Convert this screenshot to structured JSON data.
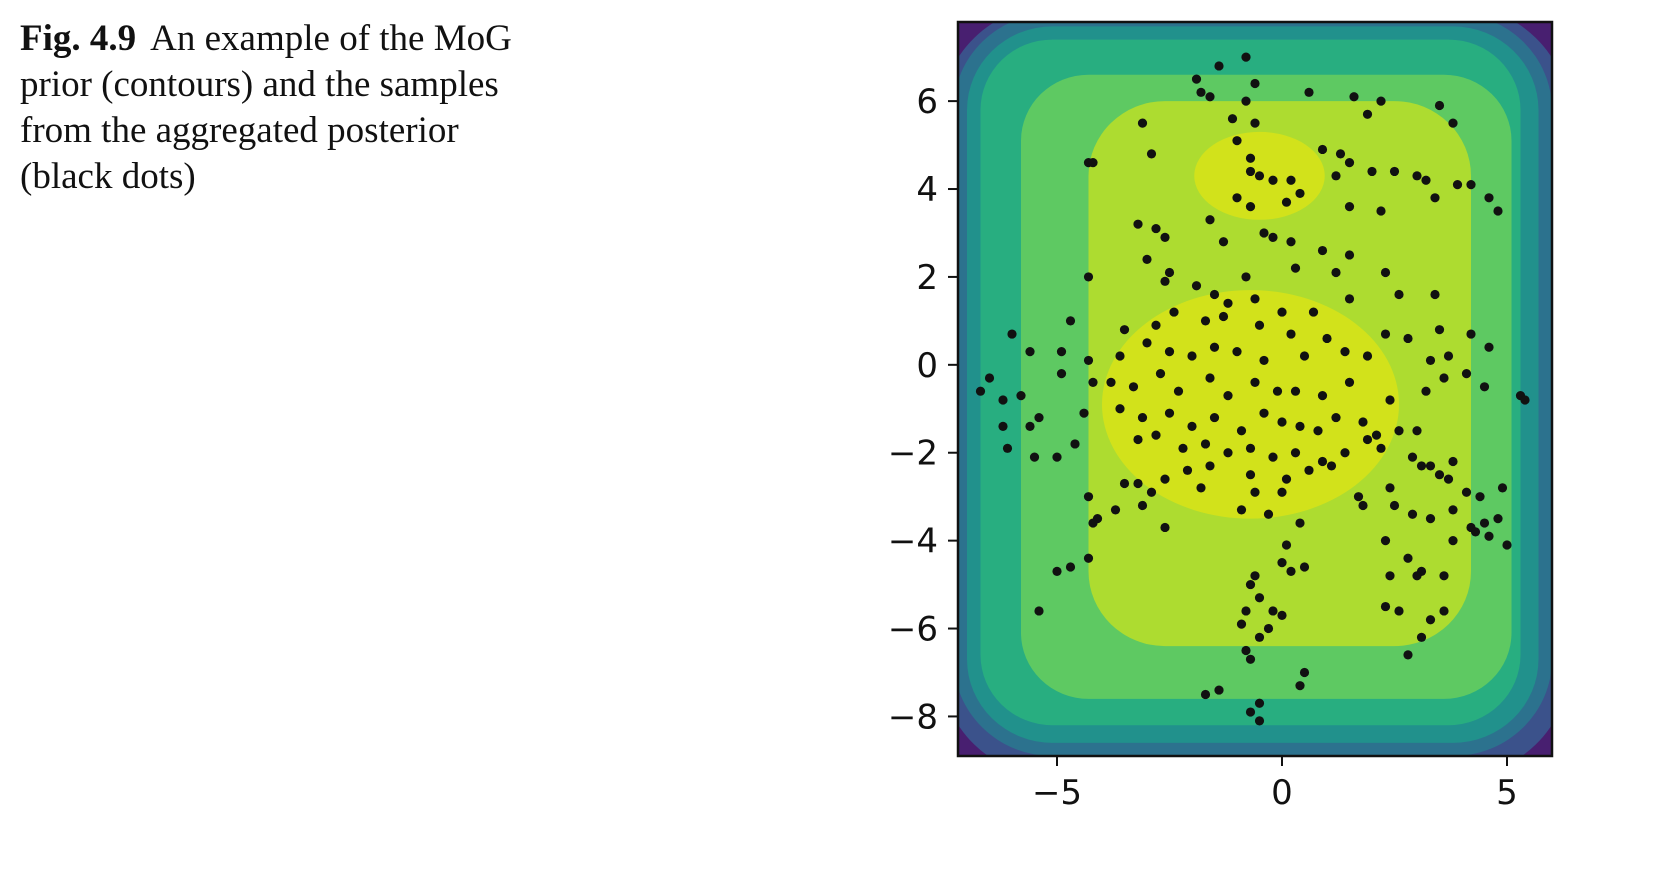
{
  "caption": {
    "label": "Fig. 4.9",
    "text": "An example of the MoG prior (contours) and the samples from the aggregated posterior (black dots)"
  },
  "chart_data": {
    "type": "scatter",
    "title": "",
    "xlabel": "",
    "ylabel": "",
    "xlim": [
      -7.2,
      6.0
    ],
    "ylim": [
      -8.9,
      7.8
    ],
    "xticks": [
      -5,
      0,
      5
    ],
    "yticks": [
      -8,
      -6,
      -4,
      -2,
      0,
      2,
      4,
      6
    ],
    "xtick_labels": [
      "−5",
      "0",
      "5"
    ],
    "ytick_labels": [
      "−8",
      "−6",
      "−4",
      "−2",
      "0",
      "2",
      "4",
      "6"
    ],
    "grid": false,
    "legend": "none",
    "background": "filled contours (viridis colormap)",
    "contour_colors": [
      "#481f70",
      "#3b528b",
      "#2c728e",
      "#21918c",
      "#28ae80",
      "#5ec962",
      "#addc30",
      "#d2e21b"
    ],
    "point_color": "#111111",
    "series": [
      {
        "points": [
          [
            -0.8,
            7.0
          ],
          [
            -1.4,
            6.8
          ],
          [
            -1.9,
            6.5
          ],
          [
            -1.8,
            6.2
          ],
          [
            -1.6,
            6.1
          ],
          [
            -0.8,
            6.0
          ],
          [
            -0.6,
            6.4
          ],
          [
            0.6,
            6.2
          ],
          [
            1.6,
            6.1
          ],
          [
            2.2,
            6.0
          ],
          [
            -3.1,
            5.5
          ],
          [
            -1.1,
            5.6
          ],
          [
            -0.6,
            5.5
          ],
          [
            1.9,
            5.7
          ],
          [
            3.5,
            5.9
          ],
          [
            3.8,
            5.5
          ],
          [
            -1.0,
            5.1
          ],
          [
            -4.3,
            4.6
          ],
          [
            -4.2,
            4.6
          ],
          [
            -2.9,
            4.8
          ],
          [
            -0.7,
            4.7
          ],
          [
            0.9,
            4.9
          ],
          [
            1.3,
            4.8
          ],
          [
            1.5,
            4.6
          ],
          [
            -0.7,
            4.4
          ],
          [
            -0.5,
            4.3
          ],
          [
            -0.2,
            4.2
          ],
          [
            0.2,
            4.2
          ],
          [
            0.4,
            3.9
          ],
          [
            1.2,
            4.3
          ],
          [
            2.0,
            4.4
          ],
          [
            2.5,
            4.4
          ],
          [
            3.0,
            4.3
          ],
          [
            3.2,
            4.2
          ],
          [
            3.9,
            4.1
          ],
          [
            4.2,
            4.1
          ],
          [
            4.6,
            3.8
          ],
          [
            4.8,
            3.5
          ],
          [
            -1.6,
            3.3
          ],
          [
            -1.0,
            3.8
          ],
          [
            -0.7,
            3.6
          ],
          [
            0.1,
            3.7
          ],
          [
            1.5,
            3.6
          ],
          [
            2.2,
            3.5
          ],
          [
            3.4,
            3.8
          ],
          [
            -3.2,
            3.2
          ],
          [
            -2.8,
            3.1
          ],
          [
            -2.6,
            2.9
          ],
          [
            -0.4,
            3.0
          ],
          [
            -0.2,
            2.9
          ],
          [
            0.2,
            2.8
          ],
          [
            -1.3,
            2.8
          ],
          [
            0.9,
            2.6
          ],
          [
            1.5,
            2.5
          ],
          [
            -3.0,
            2.4
          ],
          [
            -2.5,
            2.1
          ],
          [
            -0.8,
            2.0
          ],
          [
            0.3,
            2.2
          ],
          [
            1.2,
            2.1
          ],
          [
            2.3,
            2.1
          ],
          [
            -4.3,
            2.0
          ],
          [
            -2.6,
            1.9
          ],
          [
            -1.9,
            1.8
          ],
          [
            -1.5,
            1.6
          ],
          [
            -1.2,
            1.4
          ],
          [
            -0.6,
            1.5
          ],
          [
            0.0,
            1.2
          ],
          [
            0.7,
            1.2
          ],
          [
            1.5,
            1.5
          ],
          [
            2.6,
            1.6
          ],
          [
            3.4,
            1.6
          ],
          [
            -4.7,
            1.0
          ],
          [
            -3.5,
            0.8
          ],
          [
            -2.8,
            0.9
          ],
          [
            -2.4,
            1.2
          ],
          [
            -1.7,
            1.0
          ],
          [
            -1.3,
            1.1
          ],
          [
            -0.5,
            0.9
          ],
          [
            0.2,
            0.7
          ],
          [
            1.0,
            0.6
          ],
          [
            2.3,
            0.7
          ],
          [
            2.8,
            0.6
          ],
          [
            3.5,
            0.8
          ],
          [
            4.2,
            0.7
          ],
          [
            -6.0,
            0.7
          ],
          [
            -5.6,
            0.3
          ],
          [
            -4.9,
            0.3
          ],
          [
            -4.3,
            0.1
          ],
          [
            -3.6,
            0.2
          ],
          [
            -3.0,
            0.5
          ],
          [
            -2.5,
            0.3
          ],
          [
            -2.0,
            0.2
          ],
          [
            -1.5,
            0.4
          ],
          [
            -1.0,
            0.3
          ],
          [
            -0.4,
            0.1
          ],
          [
            0.5,
            0.2
          ],
          [
            1.4,
            0.3
          ],
          [
            1.9,
            0.2
          ],
          [
            3.3,
            0.1
          ],
          [
            3.7,
            0.2
          ],
          [
            4.6,
            0.4
          ],
          [
            -6.5,
            -0.3
          ],
          [
            -6.7,
            -0.6
          ],
          [
            -6.2,
            -0.8
          ],
          [
            -5.8,
            -0.7
          ],
          [
            -4.9,
            -0.2
          ],
          [
            -4.2,
            -0.4
          ],
          [
            -3.8,
            -0.4
          ],
          [
            -3.3,
            -0.5
          ],
          [
            -2.7,
            -0.2
          ],
          [
            -2.3,
            -0.6
          ],
          [
            -1.6,
            -0.3
          ],
          [
            -1.2,
            -0.7
          ],
          [
            -0.6,
            -0.4
          ],
          [
            -0.1,
            -0.6
          ],
          [
            0.3,
            -0.6
          ],
          [
            0.9,
            -0.7
          ],
          [
            1.5,
            -0.4
          ],
          [
            2.4,
            -0.8
          ],
          [
            3.2,
            -0.6
          ],
          [
            3.6,
            -0.3
          ],
          [
            4.1,
            -0.2
          ],
          [
            4.5,
            -0.5
          ],
          [
            5.3,
            -0.7
          ],
          [
            5.4,
            -0.8
          ],
          [
            -6.2,
            -1.4
          ],
          [
            -5.6,
            -1.4
          ],
          [
            -5.4,
            -1.2
          ],
          [
            -4.4,
            -1.1
          ],
          [
            -3.6,
            -1.0
          ],
          [
            -3.1,
            -1.2
          ],
          [
            -2.5,
            -1.1
          ],
          [
            -2.0,
            -1.4
          ],
          [
            -1.5,
            -1.2
          ],
          [
            -0.9,
            -1.5
          ],
          [
            -0.4,
            -1.1
          ],
          [
            0.0,
            -1.3
          ],
          [
            0.4,
            -1.4
          ],
          [
            0.8,
            -1.5
          ],
          [
            1.2,
            -1.2
          ],
          [
            1.8,
            -1.3
          ],
          [
            2.1,
            -1.6
          ],
          [
            2.6,
            -1.5
          ],
          [
            3.0,
            -1.5
          ],
          [
            -6.1,
            -1.9
          ],
          [
            -5.5,
            -2.1
          ],
          [
            -5.0,
            -2.1
          ],
          [
            -4.6,
            -1.8
          ],
          [
            -3.2,
            -1.7
          ],
          [
            -2.8,
            -1.6
          ],
          [
            -2.2,
            -1.9
          ],
          [
            -1.7,
            -1.8
          ],
          [
            -1.2,
            -2.0
          ],
          [
            -0.7,
            -1.9
          ],
          [
            -0.2,
            -2.1
          ],
          [
            0.3,
            -2.0
          ],
          [
            0.9,
            -2.2
          ],
          [
            1.4,
            -2.0
          ],
          [
            1.9,
            -1.7
          ],
          [
            2.2,
            -1.9
          ],
          [
            2.9,
            -2.1
          ],
          [
            3.3,
            -2.3
          ],
          [
            3.8,
            -2.2
          ],
          [
            -2.6,
            -2.6
          ],
          [
            -2.1,
            -2.4
          ],
          [
            -1.6,
            -2.3
          ],
          [
            -0.7,
            -2.5
          ],
          [
            0.1,
            -2.6
          ],
          [
            0.6,
            -2.4
          ],
          [
            1.1,
            -2.3
          ],
          [
            3.1,
            -2.3
          ],
          [
            3.5,
            -2.5
          ],
          [
            -3.5,
            -2.7
          ],
          [
            -3.2,
            -2.7
          ],
          [
            -2.9,
            -2.9
          ],
          [
            -1.8,
            -2.8
          ],
          [
            -0.6,
            -2.9
          ],
          [
            0.0,
            -2.9
          ],
          [
            1.7,
            -3.0
          ],
          [
            2.4,
            -2.8
          ],
          [
            3.7,
            -2.6
          ],
          [
            4.1,
            -2.9
          ],
          [
            4.4,
            -3.0
          ],
          [
            4.9,
            -2.8
          ],
          [
            -4.3,
            -3.0
          ],
          [
            -4.1,
            -3.5
          ],
          [
            -3.7,
            -3.3
          ],
          [
            -3.1,
            -3.2
          ],
          [
            -2.6,
            -3.7
          ],
          [
            -0.9,
            -3.3
          ],
          [
            -0.3,
            -3.4
          ],
          [
            0.4,
            -3.6
          ],
          [
            1.8,
            -3.2
          ],
          [
            2.5,
            -3.2
          ],
          [
            2.9,
            -3.4
          ],
          [
            3.3,
            -3.5
          ],
          [
            3.8,
            -3.3
          ],
          [
            4.2,
            -3.7
          ],
          [
            4.5,
            -3.6
          ],
          [
            4.8,
            -3.5
          ],
          [
            -4.2,
            -3.6
          ],
          [
            0.1,
            -4.1
          ],
          [
            2.3,
            -4.0
          ],
          [
            2.8,
            -4.4
          ],
          [
            3.1,
            -4.7
          ],
          [
            3.8,
            -4.0
          ],
          [
            4.3,
            -3.8
          ],
          [
            4.6,
            -3.9
          ],
          [
            5.0,
            -4.1
          ],
          [
            -5.0,
            -4.7
          ],
          [
            -4.7,
            -4.6
          ],
          [
            -4.3,
            -4.4
          ],
          [
            -0.6,
            -4.8
          ],
          [
            0.0,
            -4.5
          ],
          [
            0.2,
            -4.7
          ],
          [
            0.5,
            -4.6
          ],
          [
            2.4,
            -4.8
          ],
          [
            3.0,
            -4.8
          ],
          [
            3.6,
            -4.8
          ],
          [
            -0.7,
            -5.0
          ],
          [
            -0.5,
            -5.3
          ],
          [
            -0.8,
            -5.6
          ],
          [
            -0.2,
            -5.6
          ],
          [
            0.0,
            -5.7
          ],
          [
            -5.4,
            -5.6
          ],
          [
            -0.9,
            -5.9
          ],
          [
            -0.5,
            -6.2
          ],
          [
            -0.3,
            -6.0
          ],
          [
            2.3,
            -5.5
          ],
          [
            2.6,
            -5.6
          ],
          [
            3.3,
            -5.8
          ],
          [
            3.6,
            -5.6
          ],
          [
            -0.8,
            -6.5
          ],
          [
            -0.7,
            -6.7
          ],
          [
            3.1,
            -6.2
          ],
          [
            2.8,
            -6.6
          ],
          [
            0.5,
            -7.0
          ],
          [
            0.4,
            -7.3
          ],
          [
            -1.4,
            -7.4
          ],
          [
            -1.7,
            -7.5
          ],
          [
            -0.5,
            -7.7
          ],
          [
            -0.7,
            -7.9
          ],
          [
            -0.5,
            -8.1
          ]
        ]
      }
    ]
  }
}
